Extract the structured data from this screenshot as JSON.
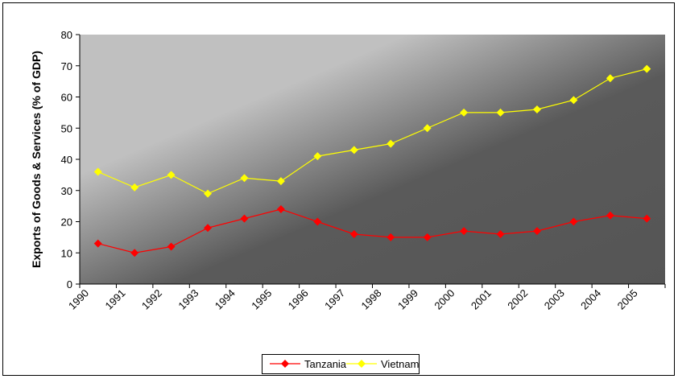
{
  "chart_data": {
    "type": "line",
    "y_label": "Exports of Goods & Services (% of GDP)",
    "categories": [
      "1990",
      "1991",
      "1992",
      "1993",
      "1994",
      "1995",
      "1996",
      "1997",
      "1998",
      "1999",
      "2000",
      "2001",
      "2002",
      "2003",
      "2004",
      "2005"
    ],
    "series": [
      {
        "name": "Tanzania",
        "color": "#ff0000",
        "values": [
          13,
          10,
          12,
          18,
          21,
          24,
          20,
          16,
          15,
          15,
          17,
          16,
          17,
          20,
          22,
          21
        ]
      },
      {
        "name": "Vietnam",
        "color": "#ffff00",
        "values": [
          36,
          31,
          35,
          29,
          34,
          33,
          41,
          43,
          45,
          50,
          55,
          55,
          56,
          59,
          66,
          69
        ]
      }
    ],
    "ylim": [
      0,
      80
    ],
    "yticks": [
      0,
      10,
      20,
      30,
      40,
      50,
      60,
      70,
      80
    ],
    "legend": "bottom"
  }
}
